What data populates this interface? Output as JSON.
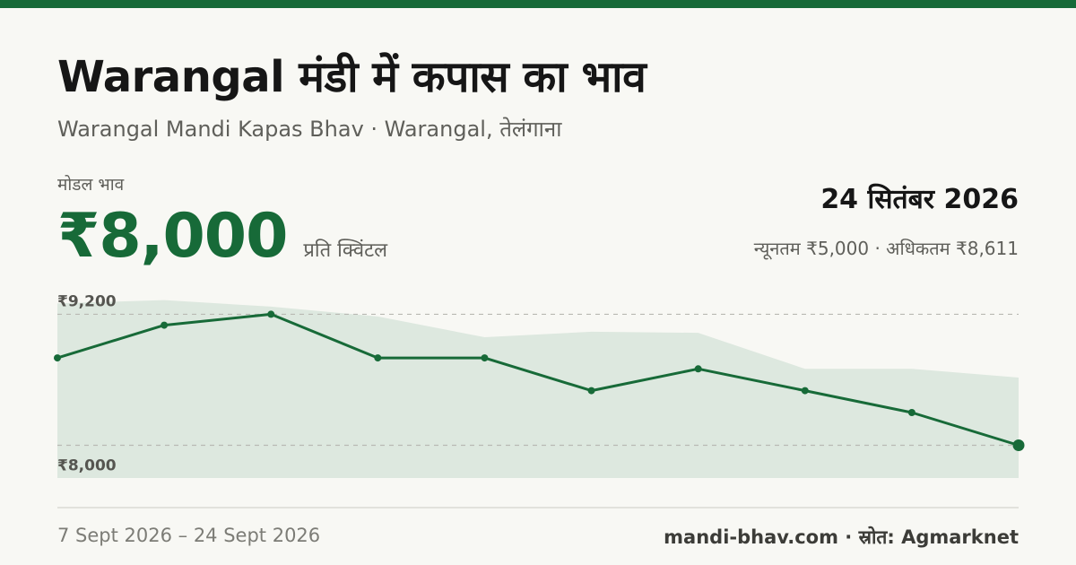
{
  "header": {
    "title": "Warangal मंडी में कपास का भाव",
    "subtitle": "Warangal Mandi Kapas Bhav · Warangal, तेलंगाना"
  },
  "summary": {
    "modal_label": "मोडल भाव",
    "modal_price": "₹8,000",
    "unit": "प्रति क्विंटल",
    "date": "24 सितंबर 2026",
    "min_max": "न्यूनतम ₹5,000 · अधिकतम ₹8,611"
  },
  "footer": {
    "period": "7 Sept 2026 – 24 Sept 2026",
    "source": "mandi-bhav.com · स्रोत: Agmarknet"
  },
  "colors": {
    "accent": "#176a38",
    "band": "#dde8df",
    "grid": "#b9b9b3"
  },
  "chart_data": {
    "type": "line",
    "ylim": [
      7700,
      9450
    ],
    "gridlines": [
      {
        "value": 9200,
        "label": "₹9,200"
      },
      {
        "value": 8000,
        "label": "₹8,000"
      }
    ],
    "series": [
      {
        "role": "modal",
        "values": [
          8800,
          9100,
          9200,
          8800,
          8800,
          8500,
          8700,
          8500,
          8300,
          8000
        ]
      }
    ],
    "band_upper": [
      9300,
      9330,
      9270,
      9180,
      8990,
      9040,
      9030,
      8700,
      8700,
      8620
    ]
  }
}
